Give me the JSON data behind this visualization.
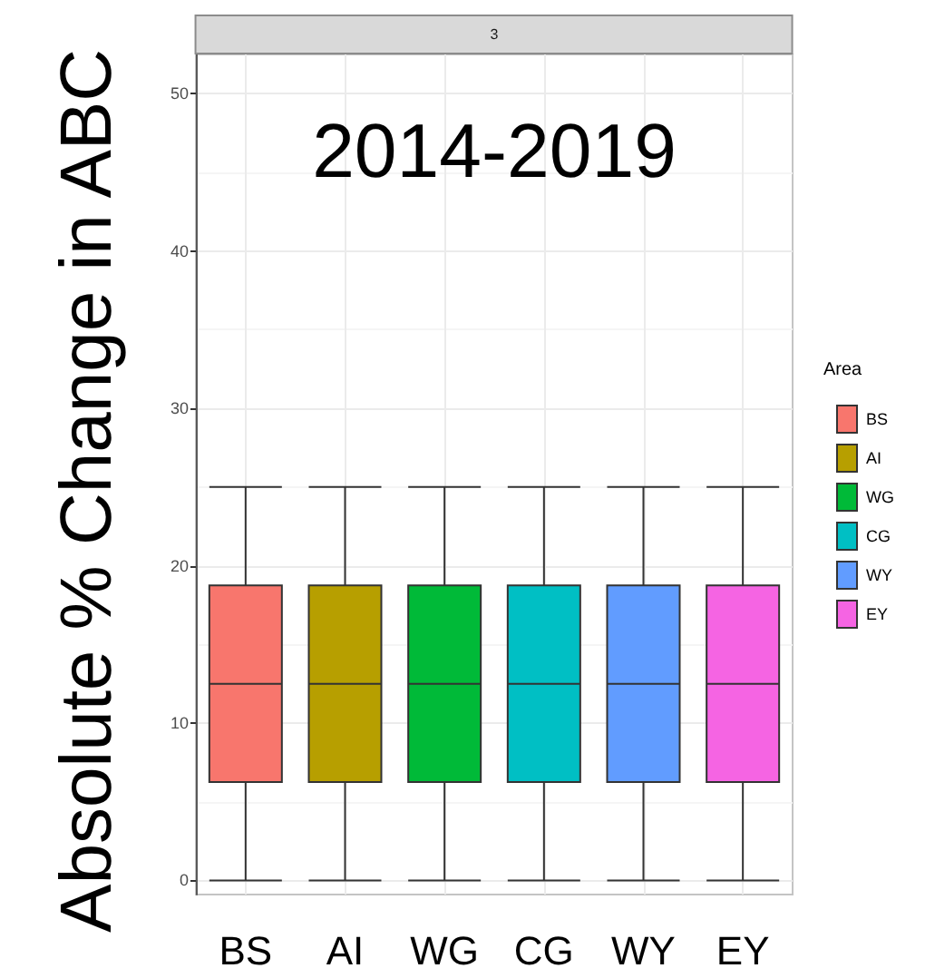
{
  "chart_data": {
    "type": "box",
    "title": "3",
    "ylabel": "Absolute % Change in ABC",
    "legend_title": "Area",
    "annotations": [
      "2014-2019"
    ],
    "categories": [
      "BS",
      "AI",
      "WG",
      "CG",
      "WY",
      "EY"
    ],
    "series": [
      {
        "name": "BS",
        "color": "#f8766d",
        "boxes": [
          {
            "low": 0,
            "q1": 6.25,
            "median": 12.5,
            "q3": 18.75,
            "high": 25
          },
          null,
          null,
          null,
          null,
          null
        ]
      },
      {
        "name": "AI",
        "color": "#b79f00",
        "boxes": [
          null,
          {
            "low": 0,
            "q1": 6.25,
            "median": 12.5,
            "q3": 18.75,
            "high": 25
          },
          null,
          null,
          null,
          null
        ]
      },
      {
        "name": "WG",
        "color": "#00ba38",
        "boxes": [
          null,
          null,
          {
            "low": 0,
            "q1": 6.25,
            "median": 12.5,
            "q3": 18.75,
            "high": 25
          },
          null,
          null,
          null
        ]
      },
      {
        "name": "CG",
        "color": "#00bfc4",
        "boxes": [
          null,
          null,
          null,
          {
            "low": 0,
            "q1": 6.25,
            "median": 12.5,
            "q3": 18.75,
            "high": 25
          },
          null,
          null
        ]
      },
      {
        "name": "WY",
        "color": "#619cff",
        "boxes": [
          null,
          null,
          null,
          null,
          {
            "low": 0,
            "q1": 6.25,
            "median": 12.5,
            "q3": 18.75,
            "high": 25
          },
          null
        ]
      },
      {
        "name": "EY",
        "color": "#f564e3",
        "boxes": [
          null,
          null,
          null,
          null,
          null,
          {
            "low": 0,
            "q1": 6.25,
            "median": 12.5,
            "q3": 18.75,
            "high": 25
          }
        ]
      }
    ],
    "ylim": [
      -0.9,
      52.5
    ],
    "yticks": [
      0,
      10,
      20,
      30,
      40,
      50
    ],
    "grid": true,
    "legend": "right"
  }
}
